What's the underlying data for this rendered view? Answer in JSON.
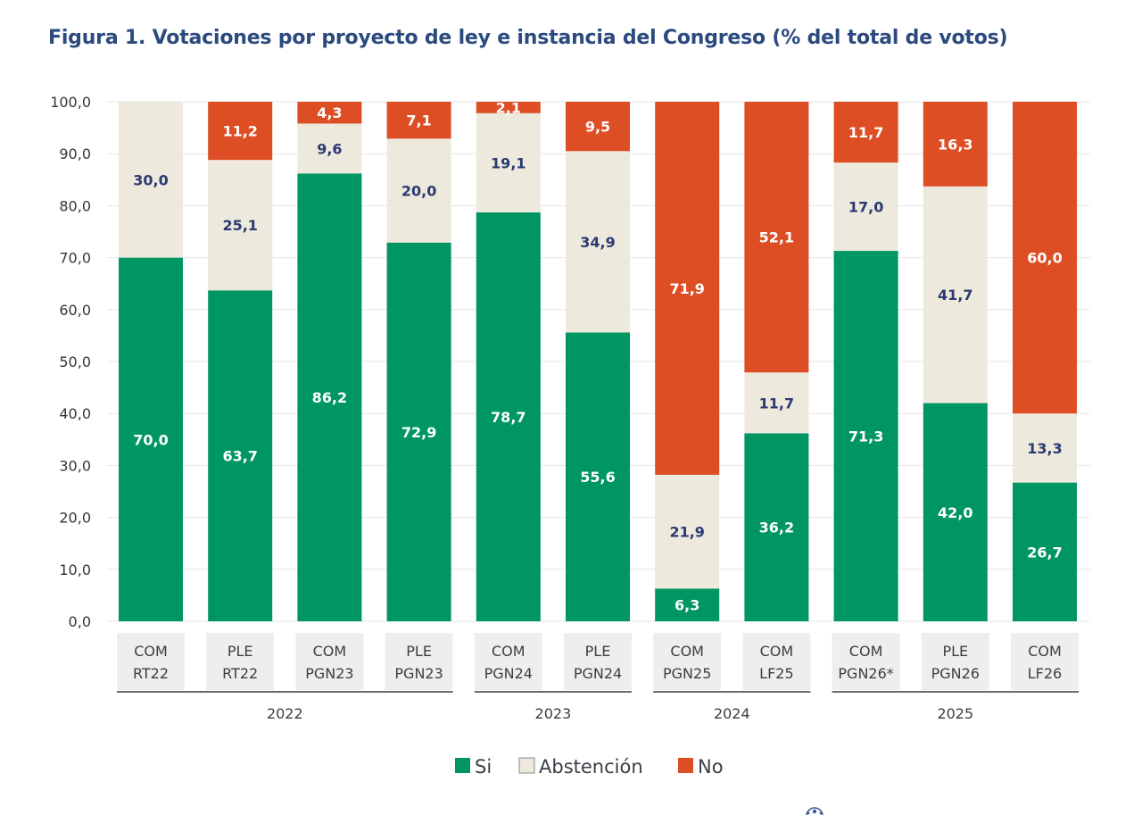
{
  "colors": {
    "si": "#009661",
    "abstencion": "#ede9dc",
    "no": "#dd4e25",
    "title": "#2b4a7e",
    "label_dark": "#2b3a72",
    "label_light": "#ffffff",
    "category_bg": "#eeeeee"
  },
  "chart_data": {
    "type": "bar",
    "stacked": true,
    "title": "Figura 1. Votaciones por proyecto de ley e instancia del Congreso (% del total de votos)",
    "xlabel": "",
    "ylabel": "",
    "ylim": [
      0,
      100
    ],
    "yticks": [
      "0,0",
      "10,0",
      "20,0",
      "30,0",
      "40,0",
      "50,0",
      "60,0",
      "70,0",
      "80,0",
      "90,0",
      "100,0"
    ],
    "grid": true,
    "legend_position": "bottom",
    "categories": [
      {
        "line1": "COM",
        "line2": "RT22"
      },
      {
        "line1": "PLE",
        "line2": "RT22"
      },
      {
        "line1": "COM",
        "line2": "PGN23"
      },
      {
        "line1": "PLE",
        "line2": "PGN23"
      },
      {
        "line1": "COM",
        "line2": "PGN24"
      },
      {
        "line1": "PLE",
        "line2": "PGN24"
      },
      {
        "line1": "COM",
        "line2": "PGN25"
      },
      {
        "line1": "COM",
        "line2": "LF25"
      },
      {
        "line1": "COM",
        "line2": "PGN26*"
      },
      {
        "line1": "PLE",
        "line2": "PGN26"
      },
      {
        "line1": "COM",
        "line2": "LF26"
      }
    ],
    "groups": [
      {
        "label": "2022",
        "start": 0,
        "end": 3
      },
      {
        "label": "2023",
        "start": 4,
        "end": 5
      },
      {
        "label": "2024",
        "start": 6,
        "end": 7
      },
      {
        "label": "2025",
        "start": 8,
        "end": 10
      }
    ],
    "series": [
      {
        "name": "Si",
        "key": "si",
        "values": [
          70.0,
          63.7,
          86.2,
          72.9,
          78.7,
          55.6,
          6.3,
          36.2,
          71.3,
          42.0,
          26.7
        ],
        "labels": [
          "70,0",
          "63,7",
          "86,2",
          "72,9",
          "78,7",
          "55,6",
          "6,3",
          "36,2",
          "71,3",
          "42,0",
          "26,7"
        ]
      },
      {
        "name": "Abstención",
        "key": "abstencion",
        "values": [
          30.0,
          25.1,
          9.6,
          20.0,
          19.1,
          34.9,
          21.9,
          11.7,
          17.0,
          41.7,
          13.3
        ],
        "labels": [
          "30,0",
          "25,1",
          "9,6",
          "20,0",
          "19,1",
          "34,9",
          "21,9",
          "11,7",
          "17,0",
          "41,7",
          "13,3"
        ]
      },
      {
        "name": "No",
        "key": "no",
        "values": [
          0,
          11.2,
          4.3,
          7.1,
          2.1,
          9.5,
          71.9,
          52.1,
          11.7,
          16.3,
          60.0
        ],
        "labels": [
          "",
          "11,2",
          "4,3",
          "7,1",
          "2,1",
          "9,5",
          "71,9",
          "52,1",
          "11,7",
          "16,3",
          "60,0"
        ]
      }
    ]
  }
}
